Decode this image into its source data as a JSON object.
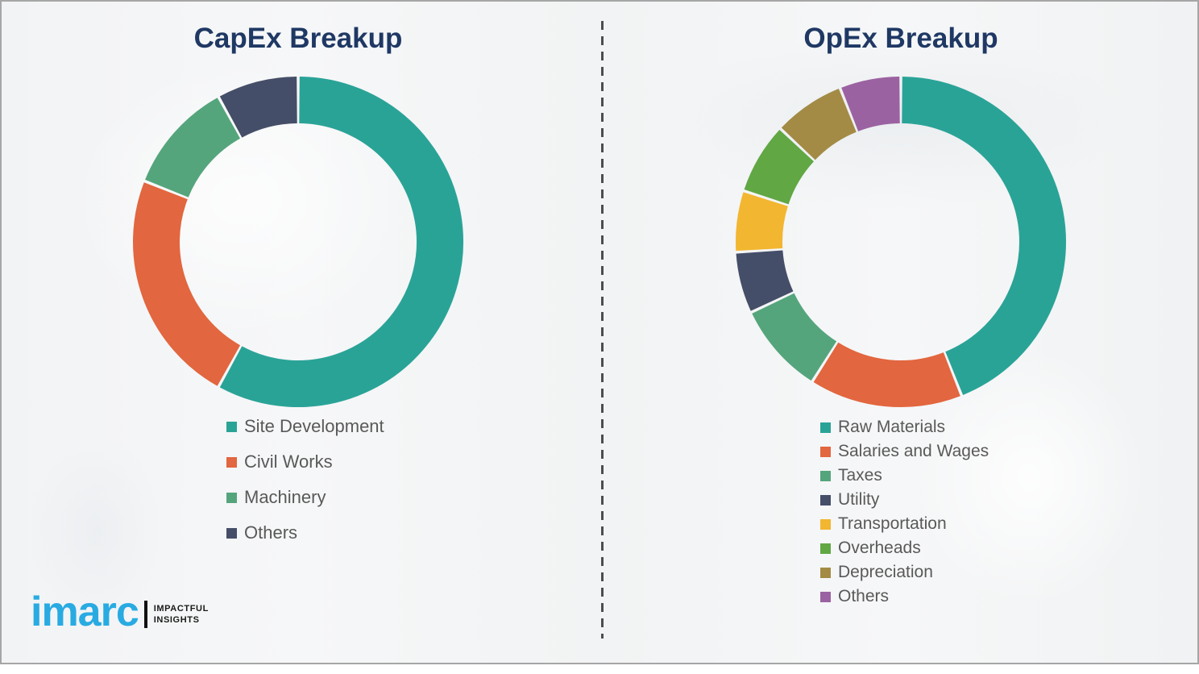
{
  "page": {
    "capex_title": "CapEx Breakup",
    "opex_title": "OpEx Breakup"
  },
  "logo": {
    "wordmark": "imarc",
    "tagline_line1": "IMPACTFUL",
    "tagline_line2": "INSIGHTS",
    "brand_color": "#29abe2"
  },
  "colors": {
    "title_navy": "#1f3864",
    "legend_text": "#595959",
    "divider_gray": "#4d4d4d",
    "frame_border": "#a6a6a6",
    "background": "#f3f4f6"
  },
  "chart_data": [
    {
      "type": "pie",
      "variant": "donut",
      "title": "CapEx Breakup",
      "categories": [
        "Site Development",
        "Civil Works",
        "Machinery",
        "Others"
      ],
      "values": [
        58,
        23,
        11,
        8
      ],
      "unit": "percent (estimated from arc angles; no numeric labels shown)",
      "colors": [
        "#2aa397",
        "#e2663f",
        "#55a57c",
        "#454e68"
      ],
      "start_angle_deg": 0,
      "direction": "clockwise",
      "legend_position": "below-left"
    },
    {
      "type": "pie",
      "variant": "donut",
      "title": "OpEx Breakup",
      "categories": [
        "Raw Materials",
        "Salaries and Wages",
        "Taxes",
        "Utility",
        "Transportation",
        "Overheads",
        "Depreciation",
        "Others"
      ],
      "values": [
        44,
        15,
        9,
        6,
        6,
        7,
        7,
        6
      ],
      "unit": "percent (estimated from arc angles; no numeric labels shown)",
      "colors": [
        "#2aa397",
        "#e2663f",
        "#55a57c",
        "#454e68",
        "#f2b630",
        "#61a744",
        "#a38b45",
        "#9b62a1"
      ],
      "start_angle_deg": 0,
      "direction": "clockwise",
      "legend_position": "below-left"
    }
  ]
}
